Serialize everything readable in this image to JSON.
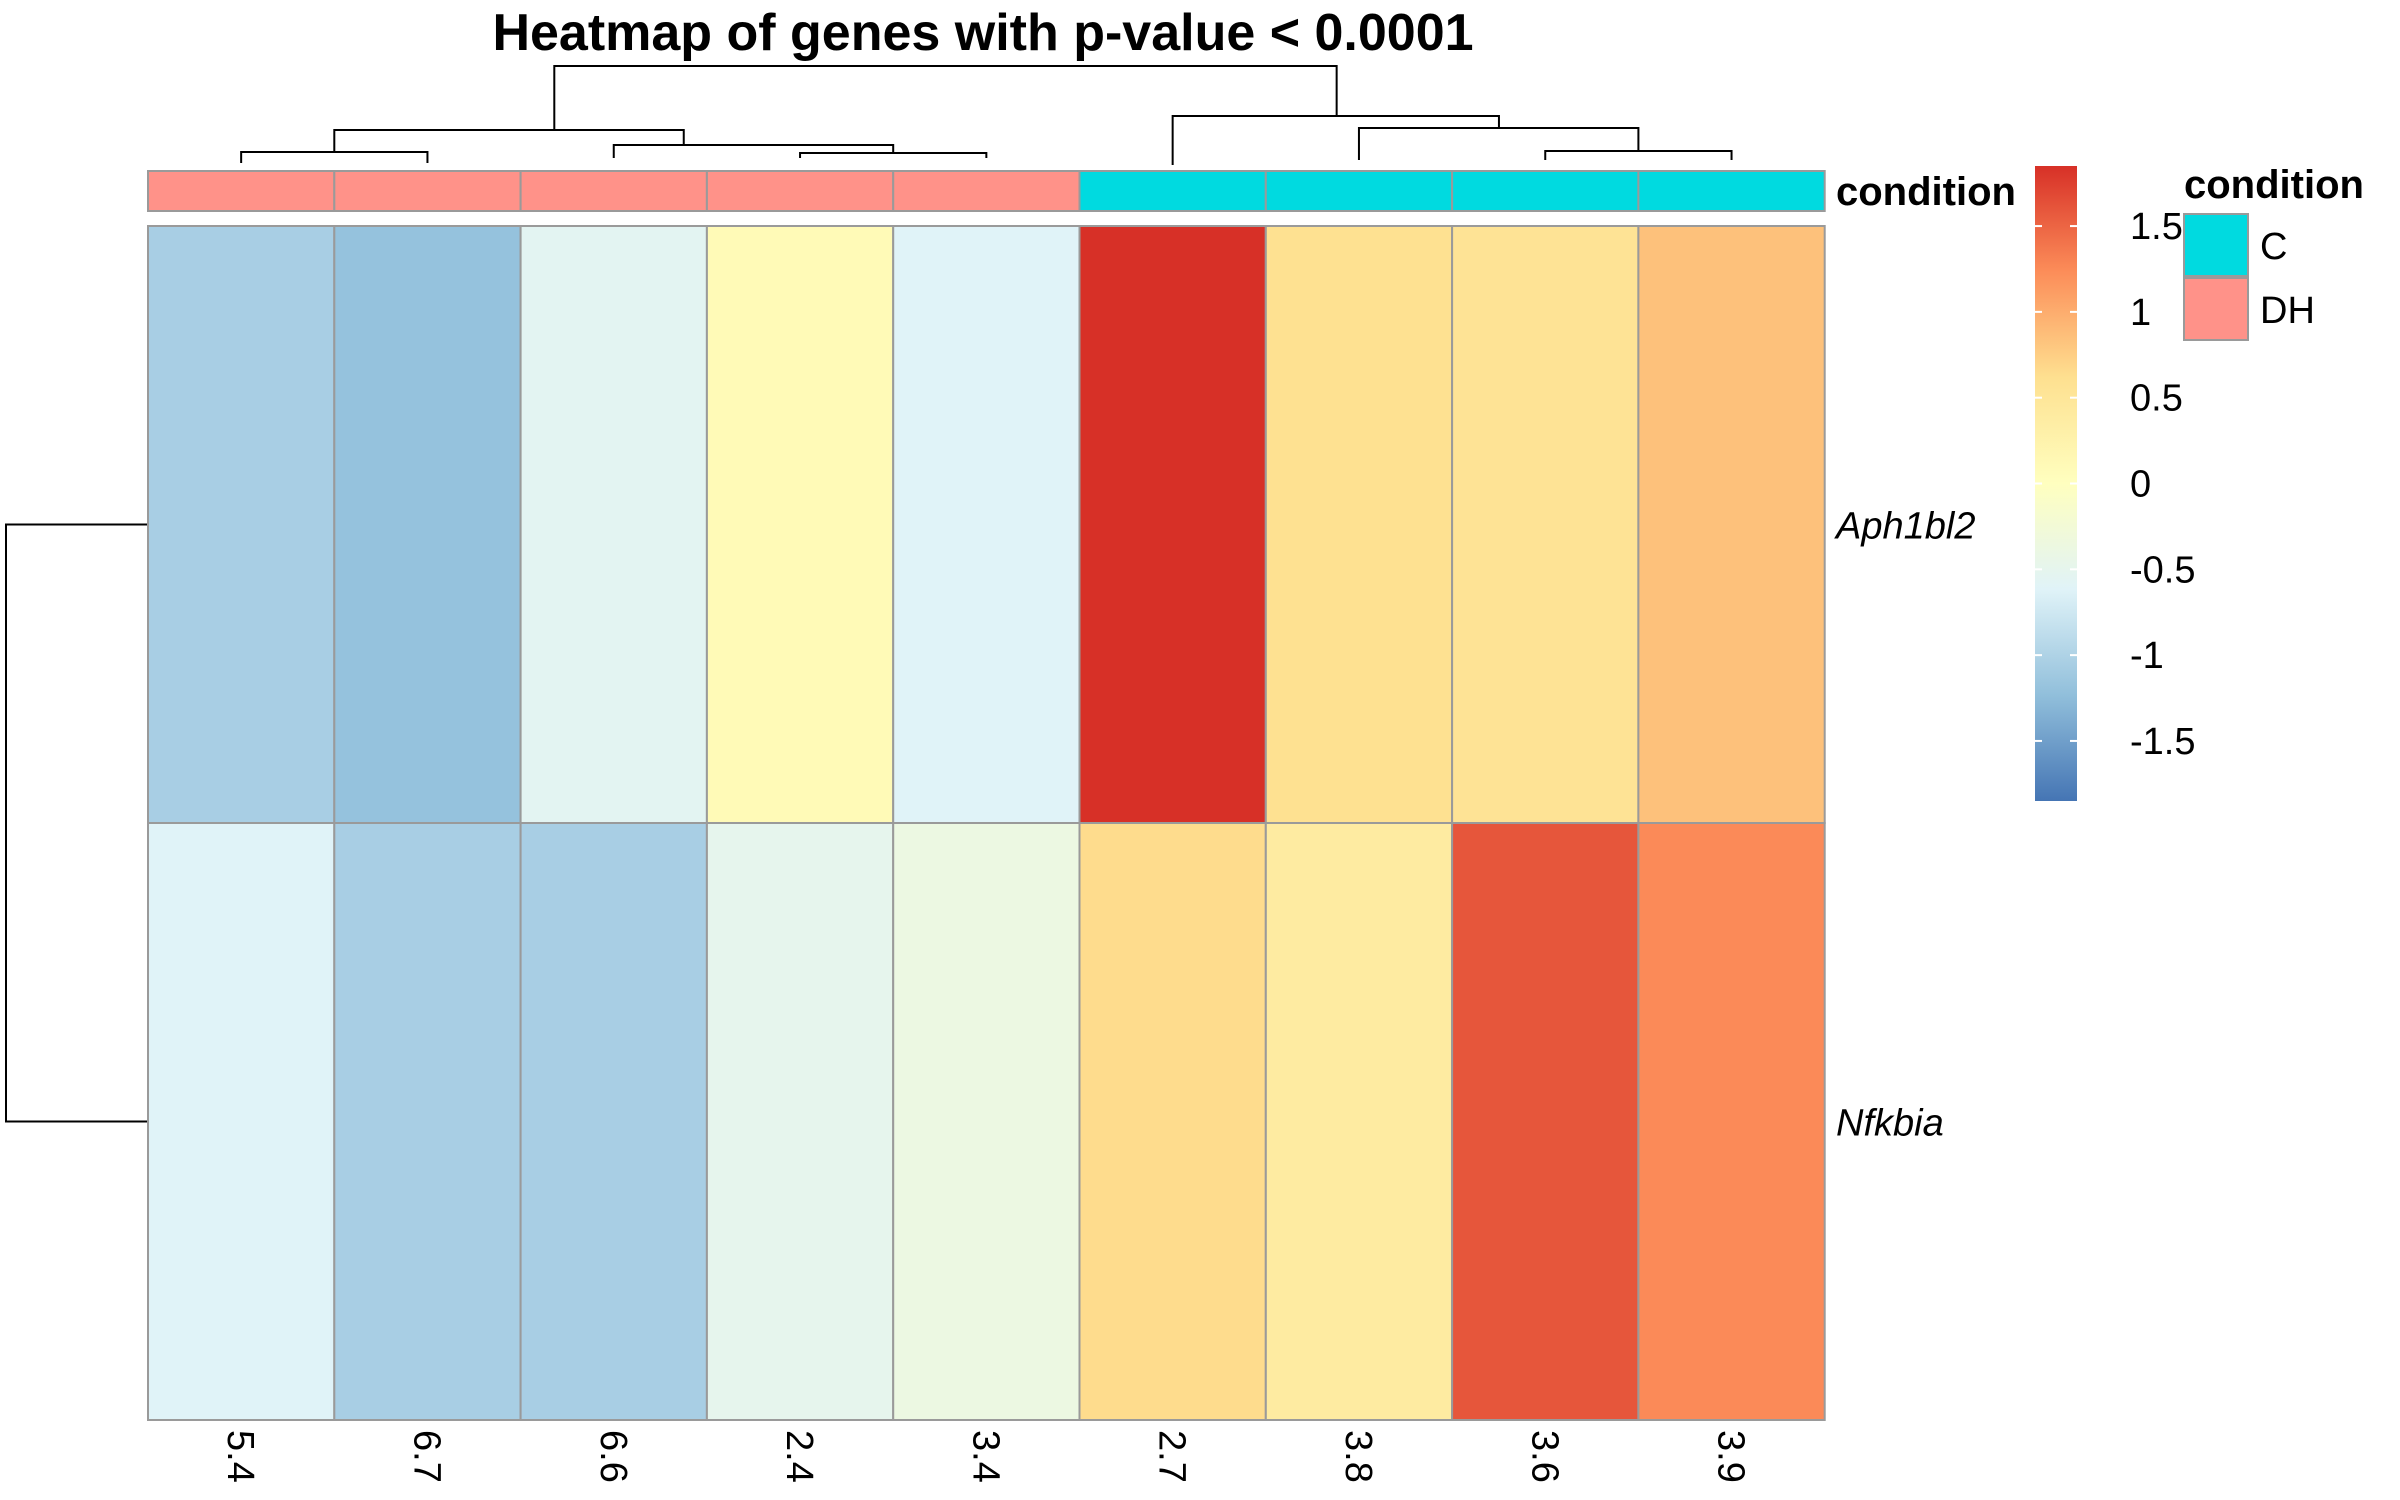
{
  "chart_data": {
    "type": "heatmap",
    "title": "Heatmap of genes with p-value < 0.0001",
    "columns": [
      "5.4",
      "6.7",
      "6.6",
      "2.4",
      "3.4",
      "2.7",
      "3.8",
      "3.6",
      "3.9"
    ],
    "column_condition": [
      "DH",
      "DH",
      "DH",
      "DH",
      "DH",
      "C",
      "C",
      "C",
      "C"
    ],
    "rows": [
      "Aph1bl2",
      "Nfkbia"
    ],
    "values": [
      [
        -1.05,
        -1.2,
        -0.55,
        0.1,
        -0.62,
        1.85,
        0.6,
        0.55,
        0.85
      ],
      [
        -0.62,
        -1.05,
        -1.05,
        -0.5,
        -0.38,
        0.65,
        0.4,
        1.6,
        1.25
      ]
    ],
    "annotation": {
      "label": "condition",
      "legend_title": "condition",
      "levels": [
        {
          "name": "C",
          "color": "#00DAE0"
        },
        {
          "name": "DH",
          "color": "#FF9289"
        }
      ]
    },
    "color_scale": {
      "range": [
        -1.85,
        1.85
      ],
      "ticks": [
        "1.5",
        "1",
        "0.5",
        "0",
        "-0.5",
        "-1",
        "-1.5"
      ],
      "tick_values": [
        1.5,
        1,
        0.5,
        0,
        -0.5,
        -1,
        -1.5
      ],
      "colors": [
        "#4575B4",
        "#91BFDB",
        "#E0F3F8",
        "#FFFFBF",
        "#FEE090",
        "#FC8D59",
        "#D73027"
      ]
    },
    "legend_position": "right",
    "column_dendrogram": true,
    "row_dendrogram": true
  }
}
